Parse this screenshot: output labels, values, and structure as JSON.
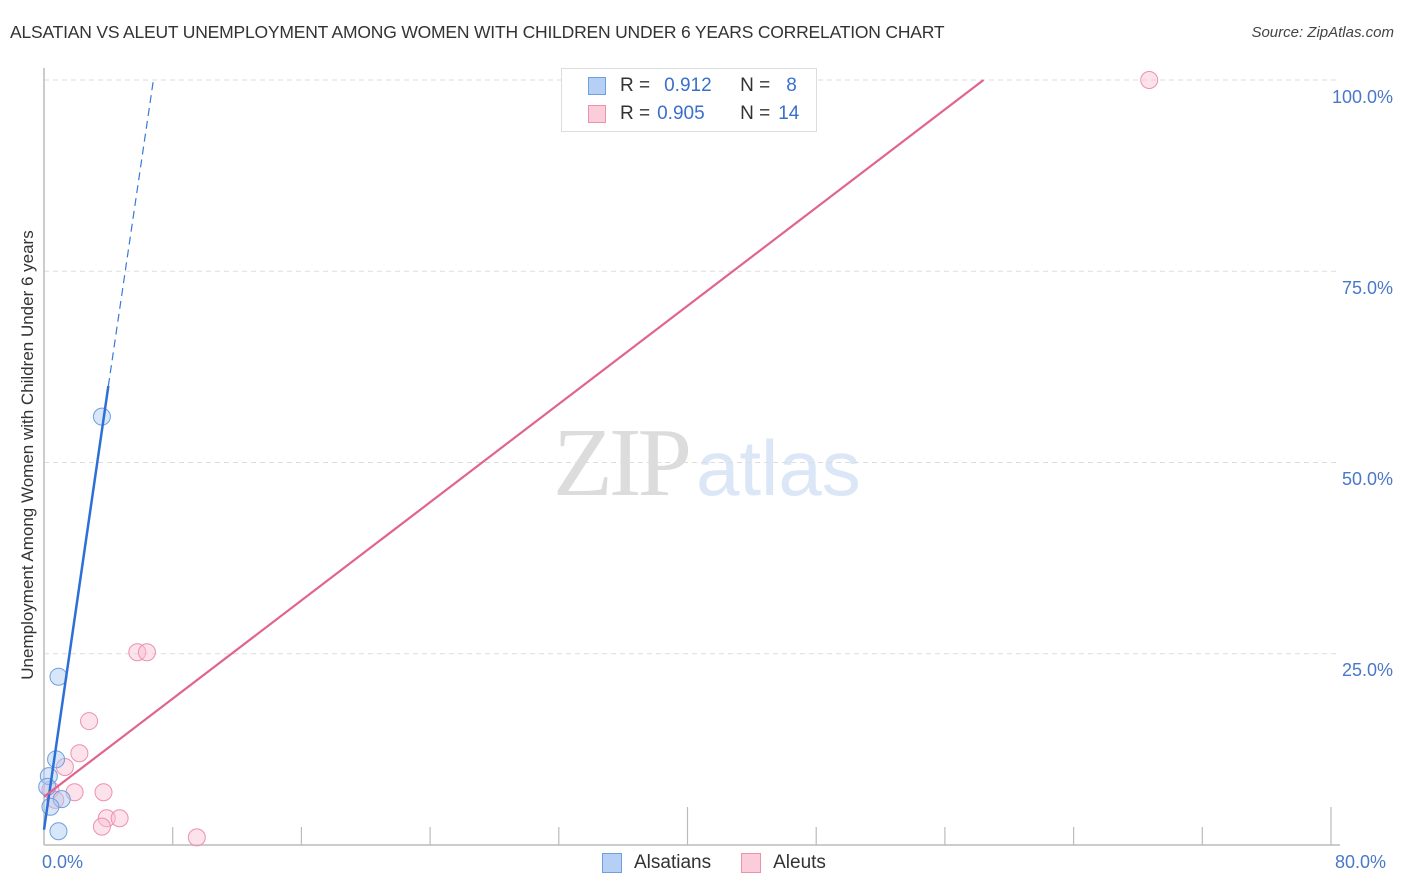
{
  "header": {
    "title": "ALSATIAN VS ALEUT UNEMPLOYMENT AMONG WOMEN WITH CHILDREN UNDER 6 YEARS CORRELATION CHART",
    "source": "Source: ZipAtlas.com"
  },
  "watermark": {
    "zip": "ZIP",
    "atlas": "atlas"
  },
  "legend": {
    "rows": [
      {
        "r_label": "R =",
        "r_value": "0.912",
        "n_label": "N =",
        "n_value": "8",
        "color": "#a9c8f2",
        "border": "#6f9fe0"
      },
      {
        "r_label": "R =",
        "r_value": "0.905",
        "n_label": "N =",
        "n_value": "14",
        "color": "#f9c5d5",
        "border": "#ee90ae"
      }
    ]
  },
  "bottom_legend": [
    {
      "label": "Alsatians",
      "color": "#b6d0f5",
      "border": "#6f9fe0"
    },
    {
      "label": "Aleuts",
      "color": "#fbccd9",
      "border": "#ee90ae"
    }
  ],
  "axes": {
    "y_label": "Unemployment Among Women with Children Under 6 years",
    "y_ticks": [
      "100.0%",
      "75.0%",
      "50.0%",
      "25.0%"
    ],
    "x_ticks": [
      "0.0%",
      "80.0%"
    ]
  },
  "chart_data": {
    "type": "scatter",
    "title": "ALSATIAN VS ALEUT UNEMPLOYMENT AMONG WOMEN WITH CHILDREN UNDER 6 YEARS CORRELATION CHART",
    "xlabel": "",
    "ylabel": "Unemployment Among Women with Children Under 6 years",
    "xlim": [
      0,
      80
    ],
    "ylim": [
      0,
      100
    ],
    "x_tick_labels": [
      "0.0%",
      "80.0%"
    ],
    "y_tick_labels": [
      "25.0%",
      "50.0%",
      "75.0%",
      "100.0%"
    ],
    "grid": true,
    "legend_position": "top-center and bottom",
    "series": [
      {
        "name": "Alsatians",
        "color": "#6f9fe0",
        "R": 0.912,
        "N": 8,
        "points": [
          {
            "x": 3.6,
            "y": 56.0
          },
          {
            "x": 0.9,
            "y": 22.0
          },
          {
            "x": 0.75,
            "y": 11.2
          },
          {
            "x": 0.3,
            "y": 9.0
          },
          {
            "x": 0.2,
            "y": 7.6
          },
          {
            "x": 1.1,
            "y": 6.0
          },
          {
            "x": 0.4,
            "y": 5.0
          },
          {
            "x": 0.9,
            "y": 1.8
          }
        ],
        "trend": {
          "x0": 0.0,
          "y0": 2.0,
          "x1": 4.0,
          "y1": 60.0,
          "dashed_to": {
            "x": 6.8,
            "y": 100.0
          }
        }
      },
      {
        "name": "Aleuts",
        "color": "#ee90ae",
        "R": 0.905,
        "N": 14,
        "points": [
          {
            "x": 68.7,
            "y": 100.0
          },
          {
            "x": 5.8,
            "y": 25.2
          },
          {
            "x": 6.4,
            "y": 25.2
          },
          {
            "x": 2.8,
            "y": 16.2
          },
          {
            "x": 2.2,
            "y": 12.0
          },
          {
            "x": 1.3,
            "y": 10.2
          },
          {
            "x": 0.4,
            "y": 7.2
          },
          {
            "x": 1.9,
            "y": 6.9
          },
          {
            "x": 3.7,
            "y": 6.9
          },
          {
            "x": 0.7,
            "y": 5.9
          },
          {
            "x": 3.9,
            "y": 3.5
          },
          {
            "x": 4.7,
            "y": 3.5
          },
          {
            "x": 3.6,
            "y": 2.4
          },
          {
            "x": 9.5,
            "y": 1.0
          }
        ],
        "trend": {
          "x0": 0.0,
          "y0": 6.3,
          "x1": 58.4,
          "y1": 100.0
        }
      }
    ]
  }
}
